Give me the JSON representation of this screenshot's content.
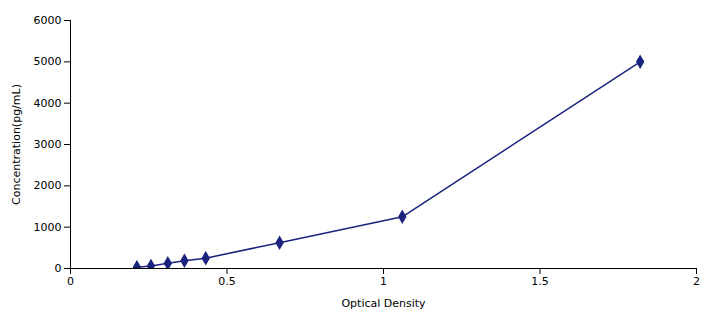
{
  "chart_data": {
    "type": "line",
    "x": [
      0.212,
      0.257,
      0.311,
      0.364,
      0.432,
      0.668,
      1.06,
      1.82
    ],
    "values": [
      31.25,
      62.5,
      125,
      187.5,
      250,
      625,
      1250,
      5000
    ],
    "color": "#1a237e",
    "marker": "diamond",
    "line_style": "solid",
    "xlabel": "Optical Density",
    "ylabel": "Concentration(pg/mL)",
    "xlim": [
      0,
      2.0
    ],
    "ylim": [
      0,
      6000
    ],
    "xticks": [
      0,
      0.5,
      1,
      1.5,
      2
    ],
    "yticks": [
      0,
      1000,
      2000,
      3000,
      4000,
      5000,
      6000
    ],
    "grid": false
  }
}
